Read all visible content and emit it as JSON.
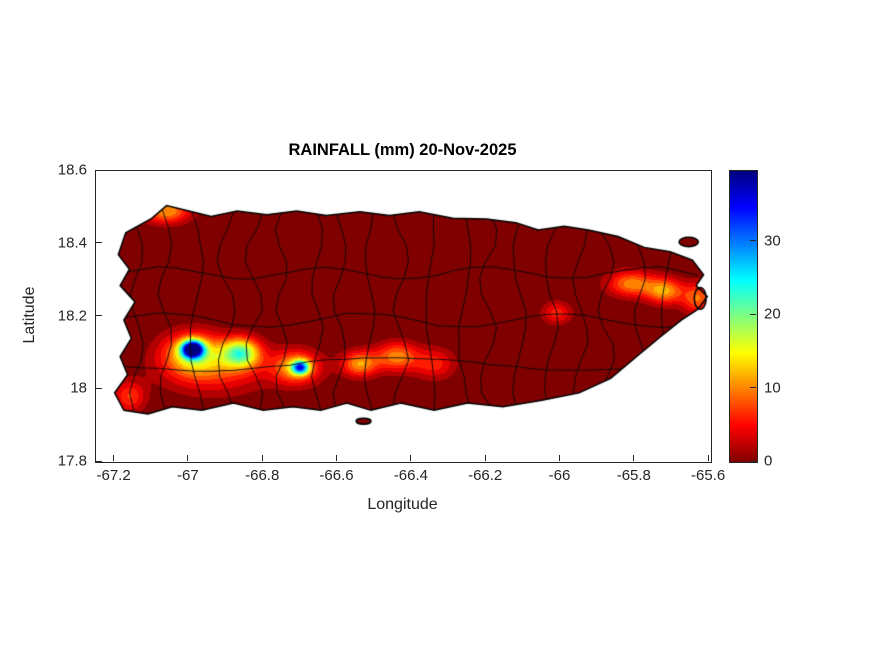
{
  "figure": {
    "background": "#ffffff"
  },
  "chart_data": {
    "type": "heatmap",
    "title": "RAINFALL (mm) 20-Nov-2025",
    "variable": "RAINFALL",
    "units": "mm",
    "date": "20-Nov-2025",
    "region": "Puerto Rico with municipal boundaries",
    "xlabel": "Longitude",
    "ylabel": "Latitude",
    "xlim": [
      -67.25,
      -65.595
    ],
    "ylim": [
      17.8,
      18.6
    ],
    "xticks": [
      -67.2,
      -67,
      -66.8,
      -66.6,
      -66.4,
      -66.2,
      -66,
      -65.8,
      -65.6
    ],
    "xtick_labels": [
      "-67.2",
      "-67",
      "-66.8",
      "-66.6",
      "-66.4",
      "-66.2",
      "-66",
      "-65.8",
      "-65.6"
    ],
    "yticks": [
      17.8,
      18,
      18.2,
      18.4,
      18.6
    ],
    "ytick_labels": [
      "17.8",
      "18",
      "18.2",
      "18.4",
      "18.6"
    ],
    "grid": false,
    "background_value_mm": 0,
    "colorbar": {
      "min": 0,
      "max": 39.6,
      "ticks": [
        0,
        10,
        20,
        30
      ],
      "tick_labels": [
        "0",
        "10",
        "20",
        "30"
      ],
      "colormap": "jet reversed (0 = dark red, max = dark blue)",
      "stops": [
        {
          "pos": 0,
          "color": "#800000"
        },
        {
          "pos": 0.125,
          "color": "#ff0000"
        },
        {
          "pos": 0.375,
          "color": "#ffff00"
        },
        {
          "pos": 0.625,
          "color": "#00ffff"
        },
        {
          "pos": 0.875,
          "color": "#0000ff"
        },
        {
          "pos": 1,
          "color": "#000080"
        }
      ]
    },
    "hotspots_mm": [
      {
        "lon": -67.06,
        "lat": 18.49,
        "sigma_lon": 0.045,
        "sigma_lat": 0.024,
        "peak_mm": 12
      },
      {
        "lon": -66.99,
        "lat": 18.11,
        "sigma_lon": 0.02,
        "sigma_lat": 0.016,
        "peak_mm": 39
      },
      {
        "lon": -66.99,
        "lat": 18.1,
        "sigma_lon": 0.055,
        "sigma_lat": 0.04,
        "peak_mm": 13
      },
      {
        "lon": -66.86,
        "lat": 18.1,
        "sigma_lon": 0.035,
        "sigma_lat": 0.028,
        "peak_mm": 19
      },
      {
        "lon": -66.93,
        "lat": 18.06,
        "sigma_lon": 0.1,
        "sigma_lat": 0.05,
        "peak_mm": 8
      },
      {
        "lon": -66.7,
        "lat": 18.06,
        "sigma_lon": 0.016,
        "sigma_lat": 0.013,
        "peak_mm": 24
      },
      {
        "lon": -66.71,
        "lat": 18.06,
        "sigma_lon": 0.045,
        "sigma_lat": 0.032,
        "peak_mm": 13
      },
      {
        "lon": -66.54,
        "lat": 18.07,
        "sigma_lon": 0.035,
        "sigma_lat": 0.025,
        "peak_mm": 12
      },
      {
        "lon": -66.44,
        "lat": 18.09,
        "sigma_lon": 0.04,
        "sigma_lat": 0.028,
        "peak_mm": 11
      },
      {
        "lon": -66.34,
        "lat": 18.07,
        "sigma_lon": 0.04,
        "sigma_lat": 0.03,
        "peak_mm": 7
      },
      {
        "lon": -66.01,
        "lat": 18.21,
        "sigma_lon": 0.028,
        "sigma_lat": 0.022,
        "peak_mm": 7
      },
      {
        "lon": -65.81,
        "lat": 18.29,
        "sigma_lon": 0.045,
        "sigma_lat": 0.025,
        "peak_mm": 11
      },
      {
        "lon": -65.72,
        "lat": 18.27,
        "sigma_lon": 0.035,
        "sigma_lat": 0.025,
        "peak_mm": 12
      },
      {
        "lon": -65.63,
        "lat": 18.25,
        "sigma_lon": 0.03,
        "sigma_lat": 0.03,
        "peak_mm": 10
      },
      {
        "lon": -67.16,
        "lat": 17.98,
        "sigma_lon": 0.03,
        "sigma_lat": 0.03,
        "peak_mm": 8
      }
    ],
    "island_outline_lonlat": [
      [
        -67.19,
        18.37
      ],
      [
        -67.17,
        18.43
      ],
      [
        -67.1,
        18.47
      ],
      [
        -67.06,
        18.505
      ],
      [
        -67.0,
        18.49
      ],
      [
        -66.94,
        18.475
      ],
      [
        -66.87,
        18.49
      ],
      [
        -66.79,
        18.48
      ],
      [
        -66.71,
        18.49
      ],
      [
        -66.63,
        18.478
      ],
      [
        -66.54,
        18.488
      ],
      [
        -66.46,
        18.478
      ],
      [
        -66.38,
        18.488
      ],
      [
        -66.29,
        18.47
      ],
      [
        -66.2,
        18.468
      ],
      [
        -66.12,
        18.458
      ],
      [
        -66.06,
        18.438
      ],
      [
        -65.99,
        18.448
      ],
      [
        -65.925,
        18.438
      ],
      [
        -65.845,
        18.42
      ],
      [
        -65.775,
        18.39
      ],
      [
        -65.705,
        18.378
      ],
      [
        -65.645,
        18.355
      ],
      [
        -65.615,
        18.315
      ],
      [
        -65.635,
        18.285
      ],
      [
        -65.605,
        18.255
      ],
      [
        -65.63,
        18.22
      ],
      [
        -65.675,
        18.19
      ],
      [
        -65.73,
        18.145
      ],
      [
        -65.795,
        18.09
      ],
      [
        -65.865,
        18.03
      ],
      [
        -65.95,
        17.99
      ],
      [
        -66.05,
        17.97
      ],
      [
        -66.155,
        17.952
      ],
      [
        -66.25,
        17.962
      ],
      [
        -66.34,
        17.942
      ],
      [
        -66.43,
        17.962
      ],
      [
        -66.51,
        17.942
      ],
      [
        -66.575,
        17.962
      ],
      [
        -66.645,
        17.942
      ],
      [
        -66.72,
        17.952
      ],
      [
        -66.8,
        17.942
      ],
      [
        -66.88,
        17.962
      ],
      [
        -66.965,
        17.942
      ],
      [
        -67.045,
        17.952
      ],
      [
        -67.11,
        17.932
      ],
      [
        -67.175,
        17.942
      ],
      [
        -67.2,
        17.99
      ],
      [
        -67.165,
        18.04
      ],
      [
        -67.185,
        18.09
      ],
      [
        -67.155,
        18.14
      ],
      [
        -67.175,
        18.19
      ],
      [
        -67.145,
        18.24
      ],
      [
        -67.185,
        18.285
      ],
      [
        -67.16,
        18.33
      ]
    ],
    "islets": [
      {
        "cx": -65.655,
        "cy": 18.405,
        "rx": 0.026,
        "ry": 0.013
      },
      {
        "cx": -65.624,
        "cy": 18.25,
        "rx": 0.016,
        "ry": 0.03
      },
      {
        "cx": -66.53,
        "cy": 17.912,
        "rx": 0.02,
        "ry": 0.008
      }
    ]
  }
}
